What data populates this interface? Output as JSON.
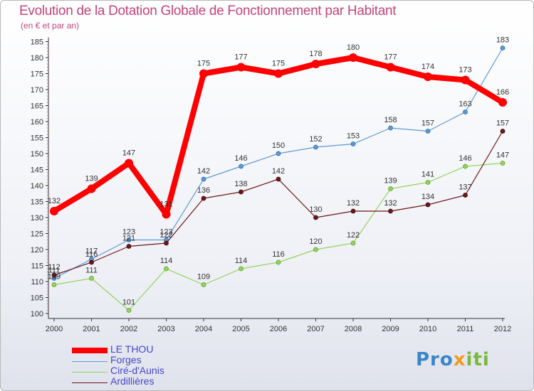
{
  "header": {
    "title": "Evolution de la Dotation Globale de Fonctionnement par Habitant",
    "subtitle": "(en € et par an)"
  },
  "logo": {
    "part1": "Pro",
    "part2": "x",
    "part3": "iti",
    "full": "Proxiti"
  },
  "chart_data": {
    "type": "line",
    "title": "Evolution de la Dotation Globale de Fonctionnement par Habitant",
    "subtitle": "(en € et par an)",
    "xlabel": "",
    "ylabel": "",
    "x": [
      "2000",
      "2001",
      "2002",
      "2003",
      "2004",
      "2005",
      "2006",
      "2007",
      "2008",
      "2009",
      "2010",
      "2011",
      "2012"
    ],
    "ylim": [
      100,
      185
    ],
    "yticks": [
      100,
      105,
      110,
      115,
      120,
      125,
      130,
      135,
      140,
      145,
      150,
      155,
      160,
      165,
      170,
      175,
      180,
      185
    ],
    "grid": false,
    "legend_position": "bottom-left",
    "series": [
      {
        "name": "LE THOU",
        "color": "#ff0000",
        "values": [
          132,
          139,
          147,
          131,
          175,
          177,
          175,
          178,
          180,
          177,
          174,
          173,
          166
        ]
      },
      {
        "name": "Forges",
        "color": "#5d9ad4",
        "values": [
          111,
          117,
          123,
          123,
          142,
          146,
          150,
          152,
          153,
          158,
          157,
          163,
          183
        ]
      },
      {
        "name": "Ciré-d'Aunis",
        "color": "#94d35e",
        "values": [
          109,
          111,
          101,
          114,
          109,
          114,
          116,
          120,
          122,
          139,
          141,
          146,
          147
        ]
      },
      {
        "name": "Ardillières",
        "color": "#6b1818",
        "values": [
          112,
          116,
          121,
          122,
          136,
          138,
          142,
          130,
          132,
          132,
          134,
          137,
          157
        ]
      }
    ]
  }
}
